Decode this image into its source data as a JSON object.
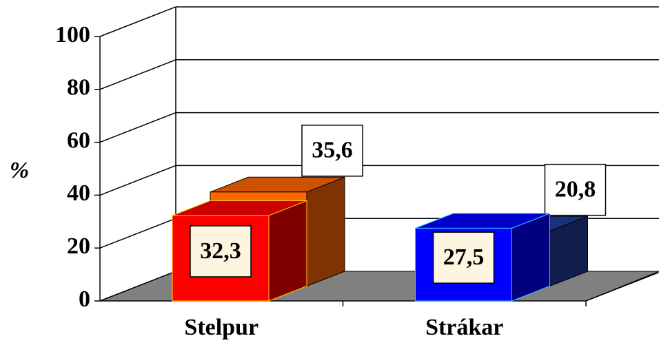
{
  "chart_data": {
    "type": "bar3d",
    "ylabel": "%",
    "categories": [
      "Stelpur",
      "Strákar"
    ],
    "series": [
      {
        "values": [
          35.6,
          20.8
        ],
        "value_labels": [
          "35,6",
          "20,8"
        ],
        "colors": [
          "#ff6600",
          "#1f3d99"
        ]
      },
      {
        "values": [
          32.3,
          27.5
        ],
        "value_labels": [
          "32,3",
          "27,5"
        ],
        "colors": [
          "#ff0000",
          "#0000ff"
        ]
      }
    ],
    "ylim": [
      0,
      100
    ],
    "yticks": [
      0,
      20,
      40,
      60,
      80,
      100
    ],
    "grid": true
  }
}
